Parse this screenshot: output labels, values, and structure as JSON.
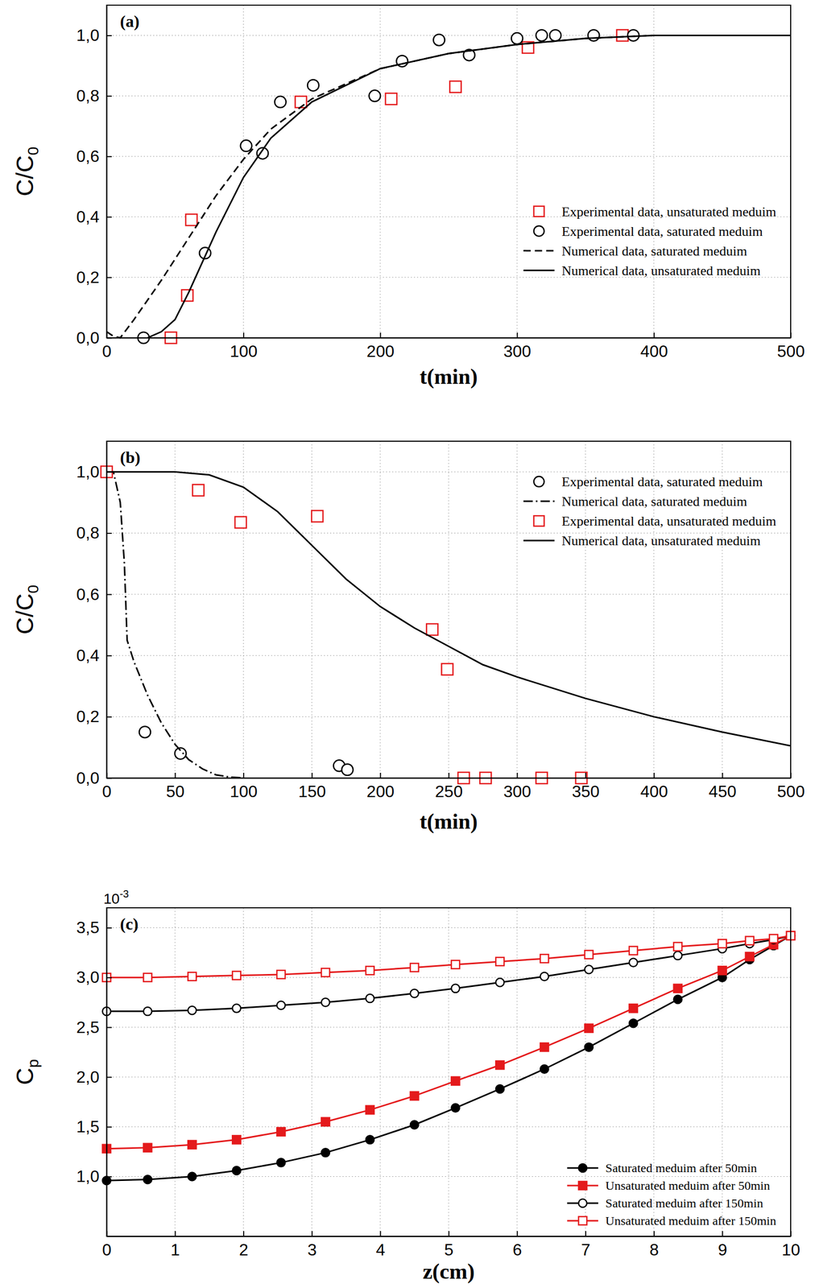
{
  "chart_data": [
    {
      "type": "line",
      "title": "(a)",
      "x_label": "t(min)",
      "y_label": "C/C",
      "y_label_subscript": "0",
      "xlim": [
        0,
        500
      ],
      "ylim": [
        0,
        1.1
      ],
      "xticks": [
        0,
        100,
        200,
        300,
        400,
        500
      ],
      "yticks": [
        {
          "value": 0,
          "label": "0,0"
        },
        {
          "value": 0.2,
          "label": "0,2"
        },
        {
          "value": 0.4,
          "label": "0,4"
        },
        {
          "value": 0.6,
          "label": "0,6"
        },
        {
          "value": 0.8,
          "label": "0,8"
        },
        {
          "value": 1.0,
          "label": "1,0"
        }
      ],
      "grid": true,
      "legend": "right",
      "series": [
        {
          "name": "Experimental data, unsaturated meduim",
          "type": "scatter",
          "color": "#e41a1c",
          "marker": "square",
          "x": [
            47,
            59,
            62,
            142,
            208,
            255,
            308,
            377
          ],
          "values": [
            0,
            0.14,
            0.39,
            0.78,
            0.79,
            0.83,
            0.96,
            1.0
          ]
        },
        {
          "name": "Experimental data, saturated meduim",
          "type": "scatter",
          "color": "#000000",
          "marker": "circle",
          "x": [
            27,
            72,
            102,
            114,
            127,
            151,
            196,
            216,
            243,
            265,
            300,
            318,
            328,
            356,
            385
          ],
          "values": [
            0,
            0.28,
            0.635,
            0.61,
            0.78,
            0.835,
            0.8,
            0.915,
            0.985,
            0.935,
            0.99,
            1.0,
            1.0,
            1.0,
            1.0
          ]
        },
        {
          "name": "Numerical data, saturated meduim",
          "type": "line",
          "color": "#000000",
          "line_style": "dashed",
          "x": [
            0,
            5,
            10,
            20,
            40,
            60,
            80,
            100,
            120,
            150,
            200,
            250,
            300,
            350,
            400,
            500
          ],
          "values": [
            0.02,
            0.005,
            0,
            0.06,
            0.19,
            0.33,
            0.47,
            0.59,
            0.69,
            0.79,
            0.89,
            0.94,
            0.97,
            0.99,
            1.0,
            1.0
          ]
        },
        {
          "name": "Numerical data, unsaturated meduim",
          "type": "line",
          "color": "#000000",
          "line_style": "solid",
          "x": [
            30,
            40,
            50,
            60,
            70,
            80,
            100,
            120,
            150,
            200,
            250,
            300,
            350,
            400,
            500
          ],
          "values": [
            0,
            0.02,
            0.06,
            0.15,
            0.25,
            0.35,
            0.53,
            0.66,
            0.78,
            0.89,
            0.94,
            0.97,
            0.99,
            1.0,
            1.0
          ]
        }
      ]
    },
    {
      "type": "line",
      "title": "(b)",
      "x_label": "t(min)",
      "y_label": "C/C",
      "y_label_subscript": "0",
      "xlim": [
        0,
        500
      ],
      "ylim": [
        0,
        1.1
      ],
      "xticks": [
        0,
        50,
        100,
        150,
        200,
        250,
        300,
        350,
        400,
        450,
        500
      ],
      "yticks": [
        {
          "value": 0,
          "label": "0,0"
        },
        {
          "value": 0.2,
          "label": "0,2"
        },
        {
          "value": 0.4,
          "label": "0,4"
        },
        {
          "value": 0.6,
          "label": "0,6"
        },
        {
          "value": 0.8,
          "label": "0,8"
        },
        {
          "value": 1.0,
          "label": "1,0"
        }
      ],
      "grid": true,
      "legend": "upper right",
      "series": [
        {
          "name": "Experimental data, saturated meduim",
          "type": "scatter",
          "color": "#000000",
          "marker": "circle",
          "x": [
            28,
            54,
            170,
            176
          ],
          "values": [
            0.15,
            0.08,
            0.04,
            0.027
          ]
        },
        {
          "name": "Numerical data, saturated meduim",
          "type": "line",
          "color": "#000000",
          "line_style": "dashdot",
          "x": [
            0,
            5,
            10,
            13,
            15,
            20,
            30,
            40,
            50,
            60,
            70,
            80,
            90,
            100
          ],
          "values": [
            1.0,
            1.0,
            0.9,
            0.7,
            0.45,
            0.38,
            0.27,
            0.18,
            0.11,
            0.06,
            0.03,
            0.01,
            0.003,
            0
          ]
        },
        {
          "name": "Experimental data, unsaturated meduim",
          "type": "scatter",
          "color": "#e41a1c",
          "marker": "square",
          "x": [
            0,
            67,
            98,
            154,
            238,
            249,
            261,
            277,
            318,
            347
          ],
          "values": [
            1.0,
            0.94,
            0.835,
            0.855,
            0.485,
            0.355,
            0,
            0,
            0,
            0
          ]
        },
        {
          "name": "Numerical data, unsaturated meduim",
          "type": "line",
          "color": "#000000",
          "line_style": "solid",
          "x": [
            0,
            50,
            75,
            100,
            125,
            150,
            175,
            200,
            225,
            250,
            275,
            300,
            350,
            400,
            450,
            500
          ],
          "values": [
            1.0,
            1.0,
            0.99,
            0.95,
            0.87,
            0.76,
            0.65,
            0.56,
            0.49,
            0.43,
            0.37,
            0.33,
            0.26,
            0.2,
            0.15,
            0.105
          ]
        }
      ]
    },
    {
      "type": "line",
      "title": "(c)",
      "x_label": "z(cm)",
      "y_label": "C",
      "y_label_subscript": "p",
      "y_multiplier": {
        "base": "10",
        "exponent": "-3"
      },
      "xlim": [
        0,
        10
      ],
      "ylim": [
        0.4,
        3.7
      ],
      "xticks": [
        0,
        1,
        2,
        3,
        4,
        5,
        6,
        7,
        8,
        9,
        10
      ],
      "yticks": [
        {
          "value": 1.0,
          "label": "1,0"
        },
        {
          "value": 1.5,
          "label": "1,5"
        },
        {
          "value": 2.0,
          "label": "2,0"
        },
        {
          "value": 2.5,
          "label": "2,5"
        },
        {
          "value": 3.0,
          "label": "3,0"
        },
        {
          "value": 3.5,
          "label": "3,5"
        }
      ],
      "grid": true,
      "legend": "lower right",
      "x": [
        0,
        0.6,
        1.25,
        1.9,
        2.55,
        3.2,
        3.85,
        4.5,
        5.1,
        5.75,
        6.4,
        7.05,
        7.7,
        8.35,
        9.0,
        9.4,
        9.75,
        10.0
      ],
      "series": [
        {
          "name": "Saturated meduim after 50min",
          "color": "#000000",
          "marker": "filled-circle",
          "line_style": "solid",
          "values": [
            0.96,
            0.97,
            1.0,
            1.06,
            1.14,
            1.24,
            1.37,
            1.52,
            1.69,
            1.88,
            2.08,
            2.3,
            2.54,
            2.78,
            3.0,
            3.18,
            3.32,
            3.42
          ]
        },
        {
          "name": "Unsaturated meduim after 50min",
          "color": "#e41a1c",
          "marker": "filled-square",
          "line_style": "solid",
          "values": [
            1.28,
            1.29,
            1.32,
            1.37,
            1.45,
            1.55,
            1.67,
            1.81,
            1.96,
            2.12,
            2.3,
            2.49,
            2.69,
            2.89,
            3.07,
            3.21,
            3.33,
            3.42
          ]
        },
        {
          "name": "Saturated meduim after 150min",
          "color": "#000000",
          "marker": "circle",
          "line_style": "solid",
          "values": [
            2.66,
            2.66,
            2.67,
            2.69,
            2.72,
            2.75,
            2.79,
            2.84,
            2.89,
            2.95,
            3.01,
            3.08,
            3.15,
            3.22,
            3.29,
            3.34,
            3.38,
            3.42
          ]
        },
        {
          "name": "Unsaturated meduim after 150min",
          "color": "#e41a1c",
          "marker": "square",
          "line_style": "solid",
          "values": [
            3.0,
            3.0,
            3.01,
            3.02,
            3.03,
            3.05,
            3.07,
            3.1,
            3.13,
            3.16,
            3.19,
            3.23,
            3.27,
            3.31,
            3.34,
            3.37,
            3.39,
            3.42
          ]
        }
      ]
    }
  ]
}
